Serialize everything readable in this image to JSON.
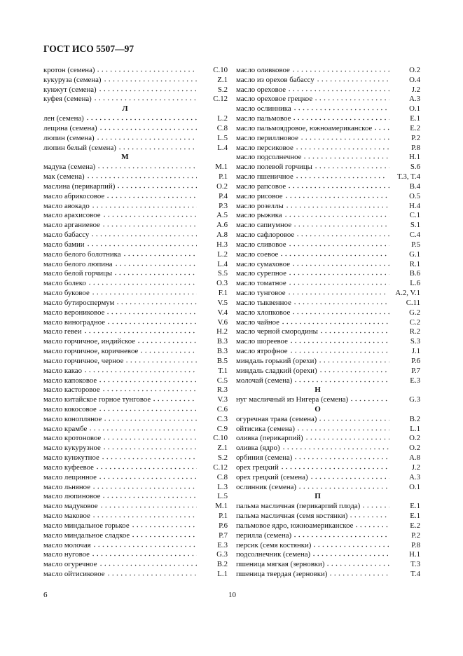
{
  "header": "ГОСТ ИСО 5507—97",
  "page_number_left": "6",
  "page_number_right": "10",
  "columns": [
    [
      {
        "name": "кротон (семена)",
        "ref": "C.10"
      },
      {
        "name": "кукуруза (семена)",
        "ref": "Z.1"
      },
      {
        "name": "кунжут (семена)",
        "ref": "S.2"
      },
      {
        "name": "куфея (семена)",
        "ref": "C.12"
      },
      {
        "letter": "Л"
      },
      {
        "name": "лен (семена)",
        "ref": "L.2"
      },
      {
        "name": "лещина (семена)",
        "ref": "C.8"
      },
      {
        "name": "люпин (семена)",
        "ref": "L.5"
      },
      {
        "name": "люпин белый (семена)",
        "ref": "L.4"
      },
      {
        "letter": "М"
      },
      {
        "name": "мадука (семена)",
        "ref": "M.1"
      },
      {
        "name": "мак (семена)",
        "ref": "P.1"
      },
      {
        "name": "маслина (перикарпий)",
        "ref": "O.2"
      },
      {
        "name": "масло абрикосовое",
        "ref": "P.4"
      },
      {
        "name": "масло авокадо",
        "ref": "P.3"
      },
      {
        "name": "масло арахисовое",
        "ref": "A.5"
      },
      {
        "name": "масло арганиевое",
        "ref": "A.6"
      },
      {
        "name": "масло бабассу",
        "ref": "A.8"
      },
      {
        "name": "масло бамии",
        "ref": "H.3"
      },
      {
        "name": "масло белого болотника",
        "ref": "L.2"
      },
      {
        "name": "масло белого люпина",
        "ref": "L.4"
      },
      {
        "name": "масло белой горчицы",
        "ref": "S.5"
      },
      {
        "name": "масло болеко",
        "ref": "O.3"
      },
      {
        "name": "масло буковое",
        "ref": "F.1"
      },
      {
        "name": "масло бутироспермум",
        "ref": "V.5"
      },
      {
        "name": "масло верониковое",
        "ref": "V.4"
      },
      {
        "name": "масло виноградное",
        "ref": "V.6"
      },
      {
        "name": "масло гевеи",
        "ref": "H.2"
      },
      {
        "name": "масло горчичное, индийское",
        "ref": "B.3"
      },
      {
        "name": "масло горчичное, коричневое",
        "ref": "B.3"
      },
      {
        "name": "масло горчичное, черное",
        "ref": "B.5"
      },
      {
        "name": "масло какао",
        "ref": "T.1"
      },
      {
        "name": "масло капоковое",
        "ref": "C.5"
      },
      {
        "name": "масло касторовое",
        "ref": "R.3"
      },
      {
        "name": "масло китайское горное тунговое",
        "ref": "V.3"
      },
      {
        "name": "масло кокосовое",
        "ref": "C.6"
      },
      {
        "name": "масло конопляное",
        "ref": "C.3"
      },
      {
        "name": "масло крамбе",
        "ref": "C.9"
      },
      {
        "name": "масло кротоновое",
        "ref": "C.10"
      },
      {
        "name": "масло кукурузное",
        "ref": "Z.1"
      },
      {
        "name": "масло кунжутное",
        "ref": "S.2"
      },
      {
        "name": "масло куфеевое",
        "ref": "C.12"
      },
      {
        "name": "масло лещинное",
        "ref": "C.8"
      },
      {
        "name": "масло льняное",
        "ref": "L.3"
      },
      {
        "name": "масло люпиновое",
        "ref": "L.5"
      },
      {
        "name": "масло мадуковое",
        "ref": "M.1"
      },
      {
        "name": "масло маковое",
        "ref": "P.1"
      },
      {
        "name": "масло миндальное горькое",
        "ref": "P.6"
      },
      {
        "name": "масло миндальное сладкое",
        "ref": "P.7"
      },
      {
        "name": "масло молочая",
        "ref": "E.3"
      },
      {
        "name": "масло нуговое",
        "ref": "G.3"
      },
      {
        "name": "масло огуречное",
        "ref": "B.2"
      },
      {
        "name": "масло ойтисиковое",
        "ref": "L.1"
      }
    ],
    [
      {
        "name": "масло оливковое",
        "ref": "O.2"
      },
      {
        "name": "масло из орехов бабассу",
        "ref": "O.4"
      },
      {
        "name": "масло ореховое",
        "ref": "J.2"
      },
      {
        "name": "масло ореховое грецкое",
        "ref": "A.3"
      },
      {
        "name": "масло ослинника",
        "ref": "O.1"
      },
      {
        "name": "масло пальмовое",
        "ref": "E.1"
      },
      {
        "name": "масло пальмоядровое, южноамериканское",
        "ref": "E.2"
      },
      {
        "name": "масло периллновое",
        "ref": "P.2"
      },
      {
        "name": "масло персиковое",
        "ref": "P.8"
      },
      {
        "name": "масло подсолнечное",
        "ref": "H.1"
      },
      {
        "name": "масло полевой горчицы",
        "ref": "S.6"
      },
      {
        "name": "масло пшеничное",
        "ref": "T.3, T.4"
      },
      {
        "name": "масло рапсовое",
        "ref": "B.4"
      },
      {
        "name": "масло рисовое",
        "ref": "O.5"
      },
      {
        "name": "масло розеллы",
        "ref": "H.4"
      },
      {
        "name": "масло рыжика",
        "ref": "C.1"
      },
      {
        "name": "масло сапиумное",
        "ref": "S.1"
      },
      {
        "name": "масло сафлоровое",
        "ref": "C.4"
      },
      {
        "name": "масло сливовое",
        "ref": "P.5"
      },
      {
        "name": "масло соевое",
        "ref": "G.1"
      },
      {
        "name": "масло сумаховое",
        "ref": "R.1"
      },
      {
        "name": "масло сурепное",
        "ref": "B.6"
      },
      {
        "name": "масло томатное",
        "ref": "L.6"
      },
      {
        "name": "масло тунговое",
        "ref": "A.2, V.1"
      },
      {
        "name": "масло тыквенное",
        "ref": "C.11"
      },
      {
        "name": "масло хлопковое",
        "ref": "G.2"
      },
      {
        "name": "масло чайное",
        "ref": "C.2"
      },
      {
        "name": "масло черной смородины",
        "ref": "R.2"
      },
      {
        "name": "масло шореевое",
        "ref": "S.3"
      },
      {
        "name": "масло ятрофное",
        "ref": "J.1"
      },
      {
        "name": "миндаль горький (орехи)",
        "ref": "P.6"
      },
      {
        "name": "миндаль сладкий (орехи)",
        "ref": "P.7"
      },
      {
        "name": "молочай (семена)",
        "ref": "E.3"
      },
      {
        "letter": "Н"
      },
      {
        "name": "нуг масличный из Нигера (семена)",
        "ref": "G.3"
      },
      {
        "letter": "О"
      },
      {
        "name": "огуречная трава (семена)",
        "ref": "B.2"
      },
      {
        "name": "ойтисика (семена)",
        "ref": "L.1"
      },
      {
        "name": "оливка (перикарпий)",
        "ref": "O.2"
      },
      {
        "name": "оливка (ядро)",
        "ref": "O.2"
      },
      {
        "name": "орбиния (семена)",
        "ref": "A.8"
      },
      {
        "name": "орех грецкий",
        "ref": "J.2"
      },
      {
        "name": "орех грецкий (семена)",
        "ref": "A.3"
      },
      {
        "name": "ослинник (семена)",
        "ref": "O.1"
      },
      {
        "letter": "П"
      },
      {
        "name": "пальма масличная (перикарпий плода)",
        "ref": "E.1"
      },
      {
        "name": "пальма масличная (семя костянки)",
        "ref": "E.1"
      },
      {
        "name": "пальмовое ядро, южноамериканское",
        "ref": "E.2"
      },
      {
        "name": "перилла (семена)",
        "ref": "P.2"
      },
      {
        "name": "персик (семя костянки)",
        "ref": "P.8"
      },
      {
        "name": "подсолнечник (семена)",
        "ref": "H.1"
      },
      {
        "name": "пшеница мягкая (зерновки)",
        "ref": "T.3"
      },
      {
        "name": "пшеница твердая (зерновки)",
        "ref": "T.4"
      }
    ]
  ]
}
